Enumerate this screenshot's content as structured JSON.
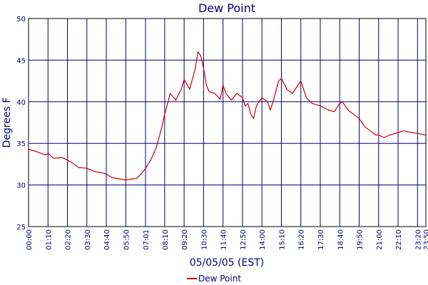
{
  "chart_data": {
    "type": "line",
    "title": "Dew Point",
    "xlabel": "05/05/05 (EST)",
    "ylabel": "Degrees F",
    "ylim": [
      25,
      50
    ],
    "yticks": [
      25,
      30,
      35,
      40,
      45,
      50
    ],
    "y_tick_labels": [
      "25",
      "30",
      "35",
      "40",
      "45",
      "50"
    ],
    "x_tick_labels": [
      "00:00",
      "01:10",
      "02:20",
      "03:30",
      "04:40",
      "05:50",
      "07:01",
      "08:10",
      "09:20",
      "10:30",
      "11:40",
      "12:50",
      "14:00",
      "15:10",
      "16:20",
      "17:30",
      "18:40",
      "19:50",
      "21:00",
      "22:10",
      "23:20",
      "23:50"
    ],
    "grid": true,
    "legend_position": "bottom-center",
    "colors": {
      "series": "#cc0000",
      "grid": "#000080",
      "text": "#000080"
    },
    "series": [
      {
        "name": "Dew Point",
        "x": [
          "00:00",
          "00:30",
          "01:00",
          "01:10",
          "01:30",
          "02:00",
          "02:20",
          "02:40",
          "03:00",
          "03:30",
          "04:00",
          "04:30",
          "04:40",
          "05:00",
          "05:30",
          "05:50",
          "06:10",
          "06:30",
          "06:50",
          "07:01",
          "07:20",
          "07:40",
          "08:00",
          "08:10",
          "08:30",
          "08:50",
          "09:10",
          "09:20",
          "09:40",
          "10:00",
          "10:10",
          "10:20",
          "10:30",
          "10:40",
          "10:50",
          "11:10",
          "11:30",
          "11:40",
          "11:50",
          "12:10",
          "12:30",
          "12:50",
          "13:00",
          "13:10",
          "13:20",
          "13:30",
          "13:40",
          "14:00",
          "14:20",
          "14:30",
          "14:40",
          "15:00",
          "15:10",
          "15:30",
          "15:50",
          "16:10",
          "16:20",
          "16:40",
          "17:00",
          "17:30",
          "18:00",
          "18:20",
          "18:40",
          "18:50",
          "19:10",
          "19:30",
          "19:50",
          "20:10",
          "20:30",
          "20:50",
          "21:00",
          "21:20",
          "21:40",
          "22:00",
          "22:10",
          "22:30",
          "23:00",
          "23:20",
          "23:50"
        ],
        "values": [
          34.3,
          34.0,
          33.6,
          33.8,
          33.2,
          33.3,
          33.0,
          32.6,
          32.1,
          32.0,
          31.6,
          31.4,
          31.3,
          30.9,
          30.7,
          30.6,
          30.7,
          30.8,
          31.5,
          32.0,
          33.0,
          34.5,
          37.0,
          38.5,
          41.0,
          40.2,
          41.5,
          42.7,
          41.5,
          44.0,
          46.0,
          45.5,
          44.0,
          42.0,
          41.2,
          41.0,
          40.3,
          42.0,
          41.0,
          40.2,
          41.0,
          40.5,
          39.5,
          39.8,
          38.5,
          38.0,
          39.5,
          40.5,
          40.0,
          39.0,
          40.0,
          42.5,
          42.8,
          41.5,
          41.0,
          42.0,
          42.5,
          40.5,
          39.8,
          39.5,
          39.0,
          38.8,
          39.8,
          40.0,
          39.0,
          38.5,
          38.0,
          37.0,
          36.5,
          36.0,
          36.0,
          35.7,
          36.0,
          36.2,
          36.3,
          36.5,
          36.3,
          36.2,
          36.0
        ]
      }
    ]
  }
}
